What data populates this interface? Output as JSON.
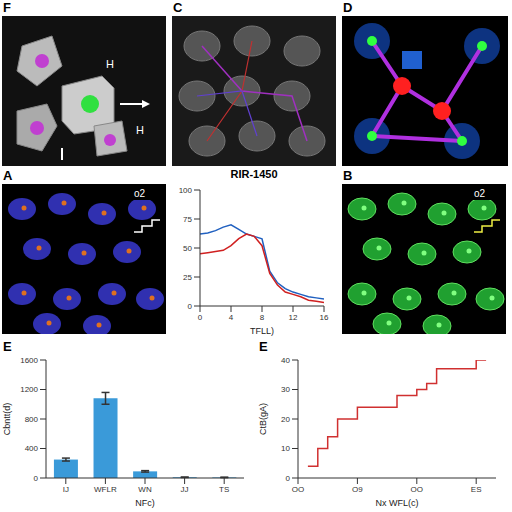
{
  "panels": {
    "F": {
      "label": "F",
      "texts": [
        "H",
        "H"
      ]
    },
    "C": {
      "label": "C"
    },
    "D": {
      "label": "D"
    },
    "A": {
      "label": "A",
      "corner": "o2"
    },
    "B": {
      "label": "B",
      "corner": "o2"
    }
  },
  "chart_data": [
    {
      "type": "line",
      "title": "RIR-1450",
      "x_label": "TFLL)",
      "x": [
        0,
        1,
        2,
        3,
        4,
        5,
        6,
        7,
        8,
        9,
        10,
        11,
        12,
        13,
        14,
        15,
        16
      ],
      "xlim": [
        0,
        16
      ],
      "xticks": [
        0,
        4,
        8,
        12,
        16
      ],
      "ylim": [
        0,
        100
      ],
      "yticks": [
        0,
        25,
        50,
        75,
        100
      ],
      "grid": false,
      "series": [
        {
          "color": "#2060c0",
          "values": [
            62,
            63,
            65,
            68,
            70,
            66,
            62,
            60,
            58,
            30,
            20,
            15,
            12,
            10,
            8,
            7,
            6
          ]
        },
        {
          "color": "#d02020",
          "values": [
            45,
            46,
            47,
            48,
            52,
            58,
            62,
            60,
            52,
            28,
            18,
            12,
            10,
            8,
            5,
            4,
            3
          ]
        }
      ]
    },
    {
      "type": "bar",
      "panel_label": "E",
      "x_label": "NFc)",
      "y_label": "Cbntt(d)",
      "categories": [
        "IJ",
        "WFLR",
        "WN",
        "JJ",
        "TS"
      ],
      "values": [
        250,
        1080,
        90,
        10,
        8
      ],
      "errors": [
        20,
        80,
        10,
        3,
        3
      ],
      "color": "#3a9ad9",
      "ylim": [
        0,
        1600
      ],
      "yticks": [
        0,
        400,
        800,
        1200,
        1600
      ],
      "grid": false
    },
    {
      "type": "line",
      "panel_label": "E",
      "x_label": "Nx WFL(c)",
      "y_label": "CtB(gA)",
      "x": [
        0.5,
        1,
        1.5,
        2,
        3,
        4,
        5,
        6,
        6.5,
        7,
        8,
        9,
        9.5
      ],
      "xlim": [
        0,
        10
      ],
      "xticks": [
        {
          "value": 0,
          "label": "OO"
        },
        {
          "value": 3,
          "label": "O9"
        },
        {
          "value": 6,
          "label": "OO"
        },
        {
          "value": 9,
          "label": "ES"
        }
      ],
      "ylim": [
        0,
        40
      ],
      "yticks": [
        0,
        10,
        20,
        30,
        40
      ],
      "grid": false,
      "series": [
        {
          "color": "#d03030",
          "line_style": "step",
          "values": [
            4,
            10,
            14,
            20,
            24,
            24,
            28,
            30,
            32,
            37,
            37,
            40,
            40
          ]
        }
      ]
    }
  ]
}
